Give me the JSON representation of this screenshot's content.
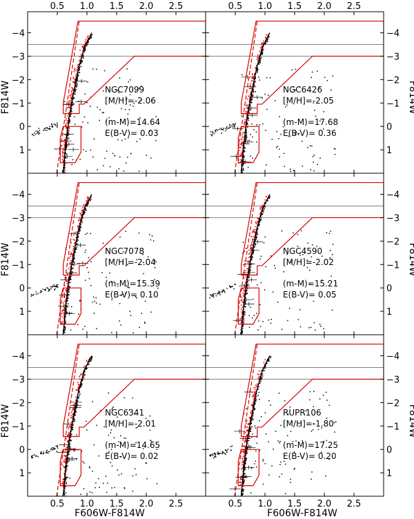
{
  "chart_data": {
    "type": "scatter",
    "figure_layout": "3x2 grid of color-magnitude diagrams",
    "xlabel": "F606W-F814W",
    "ylabel": "F814W",
    "xlim": [
      0.0,
      3.0
    ],
    "ylim": [
      2.0,
      -4.9
    ],
    "x_ticks": [
      0.5,
      1.0,
      1.5,
      2.0,
      2.5
    ],
    "x_tick_labels": [
      "0.5",
      "1.0",
      "1.5",
      "2.0",
      "2.5"
    ],
    "y_ticks": [
      -4,
      -3,
      -2,
      -1,
      0,
      1
    ],
    "y_tick_labels": [
      "−4",
      "−3",
      "−2",
      "−1",
      "0",
      "1"
    ],
    "reference_lines_mag": [
      -3.5,
      -3.0
    ],
    "colors": {
      "points": "#000000",
      "selected": "#ff0000",
      "selection_box": "#d40000",
      "reference_lines": "#808080"
    },
    "panels": [
      {
        "cluster": "NGC7099",
        "metallicity": "[M/H]=-2.06",
        "distance_modulus": "(m-M)=14.64",
        "reddening": "E(B-V)= 0.03"
      },
      {
        "cluster": "NGC6426",
        "metallicity": "[M/H]=-2.05",
        "distance_modulus": "(m-M)=17.68",
        "reddening": "E(B-V)= 0.36"
      },
      {
        "cluster": "NGC7078",
        "metallicity": "[M/H]=-2.04",
        "distance_modulus": "(m-M)=15.39",
        "reddening": "E(B-V)= 0.10"
      },
      {
        "cluster": "NGC4590",
        "metallicity": "[M/H]=-2.02",
        "distance_modulus": "(m-M)=15.21",
        "reddening": "E(B-V)= 0.05"
      },
      {
        "cluster": "NGC6341",
        "metallicity": "[M/H]=-2.01",
        "distance_modulus": "(m-M)=14.65",
        "reddening": "E(B-V)= 0.02"
      },
      {
        "cluster": "RUPR106",
        "metallicity": "[M/H]=-1.80",
        "distance_modulus": "(m-M)=17.25",
        "reddening": "E(B-V)= 0.20"
      }
    ],
    "upper_selection_polygon": [
      [
        0.85,
        -4.5
      ],
      [
        3.0,
        -4.5
      ],
      [
        3.0,
        -3.0
      ],
      [
        1.8,
        -3.0
      ],
      [
        0.95,
        -0.95
      ],
      [
        0.87,
        -0.95
      ],
      [
        0.87,
        -0.55
      ],
      [
        0.6,
        -0.55
      ],
      [
        0.6,
        -1.0
      ]
    ],
    "lower_selection_polygon": [
      [
        0.6,
        0.0
      ],
      [
        0.9,
        0.0
      ],
      [
        0.9,
        1.1
      ],
      [
        0.8,
        1.55
      ],
      [
        0.55,
        1.55
      ],
      [
        0.55,
        0.5
      ]
    ],
    "dashed_boundary": [
      [
        0.49,
        2.0
      ],
      [
        0.87,
        -4.5
      ]
    ],
    "ridge_line": [
      [
        0.6,
        2.0
      ],
      [
        0.64,
        0.8
      ],
      [
        0.7,
        -0.4
      ],
      [
        0.78,
        -1.5
      ],
      [
        0.86,
        -2.5
      ],
      [
        0.96,
        -3.4
      ],
      [
        1.08,
        -4.0
      ]
    ]
  }
}
